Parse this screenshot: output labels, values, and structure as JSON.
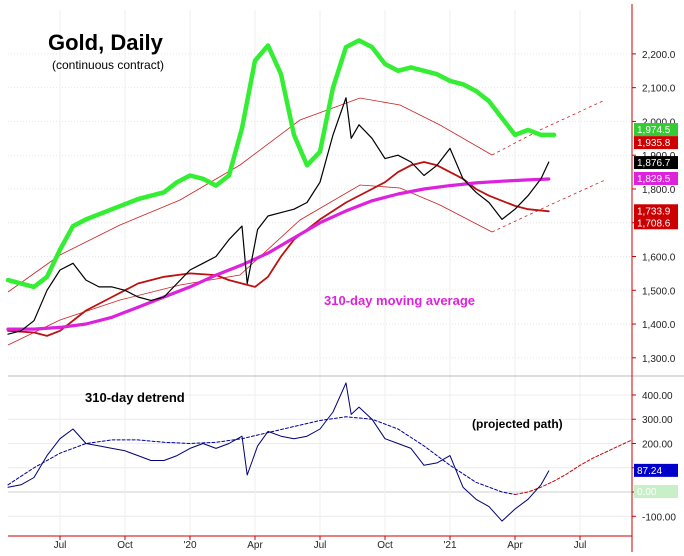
{
  "chart_data": [
    {
      "type": "line",
      "title": "Gold, Daily",
      "subtitle": "(continuous contract)",
      "annotation": "310-day moving average",
      "y_ticks": [
        1300,
        1400,
        1500,
        1600,
        1700,
        1800,
        1900,
        2000,
        2100,
        2200
      ],
      "y_tick_labels": [
        "1,300.0",
        "1,400.0",
        "1,500.0",
        "1,600.0",
        "1,700.0",
        "1,800.0",
        "1,900.0",
        "2,000.0",
        "2,100.0",
        "2,200.0"
      ],
      "ylim": [
        1255,
        2330
      ],
      "x_labels": [
        "Jul",
        "Oct",
        "'20",
        "Apr",
        "Jul",
        "Oct",
        "'21",
        "Apr",
        "Jul"
      ],
      "x_label_positions": [
        2019.5,
        2019.75,
        2020.0,
        2020.25,
        2020.5,
        2020.75,
        2021.0,
        2021.25,
        2021.5
      ],
      "xlim": [
        2019.3,
        2021.7
      ],
      "grid": true,
      "price_badges": [
        {
          "value": "1,974.5",
          "color": "#33cc33",
          "level": 1974.5
        },
        {
          "value": "1,935.8",
          "color": "#cc0000",
          "level": 1935.8
        },
        {
          "value": "1,876.7",
          "color": "#000000",
          "level": 1876.7
        },
        {
          "value": "1,829.5",
          "color": "#dd22dd",
          "level": 1829.5
        },
        {
          "value": "1,733.9",
          "color": "#cc0000",
          "level": 1733.9
        },
        {
          "value": "1,708.6",
          "color": "#cc0000",
          "level": 1708.6
        }
      ],
      "series": [
        {
          "color": "#000000",
          "x": [
            2019.3,
            2019.35,
            2019.4,
            2019.45,
            2019.5,
            2019.55,
            2019.6,
            2019.65,
            2019.7,
            2019.75,
            2019.8,
            2019.85,
            2019.9,
            2019.95,
            2020.0,
            2020.05,
            2020.1,
            2020.15,
            2020.2,
            2020.22,
            2020.24,
            2020.26,
            2020.3,
            2020.35,
            2020.4,
            2020.45,
            2020.5,
            2020.55,
            2020.6,
            2020.62,
            2020.65,
            2020.7,
            2020.75,
            2020.8,
            2020.85,
            2020.9,
            2020.95,
            2021.0,
            2021.05,
            2021.1,
            2021.15,
            2021.2,
            2021.25,
            2021.3,
            2021.35,
            2021.38
          ],
          "y": [
            1370,
            1380,
            1410,
            1500,
            1560,
            1580,
            1530,
            1510,
            1510,
            1500,
            1480,
            1470,
            1480,
            1520,
            1560,
            1580,
            1600,
            1650,
            1690,
            1520,
            1600,
            1680,
            1720,
            1730,
            1740,
            1760,
            1820,
            1960,
            2070,
            1950,
            1990,
            1950,
            1890,
            1900,
            1880,
            1840,
            1870,
            1920,
            1830,
            1790,
            1760,
            1710,
            1740,
            1780,
            1830,
            1880
          ]
        },
        {
          "color": "#33ee33",
          "x": [
            2019.3,
            2019.4,
            2019.45,
            2019.5,
            2019.55,
            2019.6,
            2019.7,
            2019.8,
            2019.9,
            2019.95,
            2020.0,
            2020.05,
            2020.1,
            2020.15,
            2020.2,
            2020.25,
            2020.3,
            2020.35,
            2020.4,
            2020.45,
            2020.5,
            2020.55,
            2020.6,
            2020.65,
            2020.7,
            2020.75,
            2020.8,
            2020.85,
            2020.9,
            2020.95,
            2021.0,
            2021.05,
            2021.1,
            2021.15,
            2021.2,
            2021.25,
            2021.3,
            2021.35,
            2021.4
          ],
          "y": [
            1530,
            1510,
            1540,
            1620,
            1690,
            1710,
            1740,
            1770,
            1790,
            1820,
            1840,
            1830,
            1810,
            1840,
            1980,
            2180,
            2225,
            2140,
            1960,
            1870,
            1910,
            2100,
            2220,
            2240,
            2220,
            2170,
            2150,
            2160,
            2150,
            2140,
            2120,
            2110,
            2090,
            2060,
            2010,
            1960,
            1974.5,
            1960,
            1960
          ]
        },
        {
          "color": "#dd22dd",
          "x": [
            2019.3,
            2019.4,
            2019.5,
            2019.6,
            2019.7,
            2019.8,
            2019.9,
            2020.0,
            2020.1,
            2020.2,
            2020.3,
            2020.4,
            2020.5,
            2020.6,
            2020.7,
            2020.8,
            2020.9,
            2021.0,
            2021.1,
            2021.2,
            2021.3,
            2021.38
          ],
          "y": [
            1385,
            1385,
            1390,
            1400,
            1420,
            1450,
            1480,
            1510,
            1545,
            1575,
            1610,
            1655,
            1700,
            1735,
            1765,
            1785,
            1800,
            1810,
            1818,
            1823,
            1827,
            1829.5
          ]
        },
        {
          "color": "#bb1111",
          "x": [
            2019.3,
            2019.4,
            2019.45,
            2019.5,
            2019.6,
            2019.7,
            2019.8,
            2019.9,
            2020.0,
            2020.1,
            2020.15,
            2020.2,
            2020.25,
            2020.3,
            2020.35,
            2020.4,
            2020.5,
            2020.6,
            2020.7,
            2020.75,
            2020.8,
            2020.85,
            2020.9,
            2020.95,
            2021.0,
            2021.05,
            2021.1,
            2021.15,
            2021.2,
            2021.25,
            2021.3,
            2021.38
          ],
          "y": [
            1380,
            1375,
            1365,
            1380,
            1440,
            1480,
            1520,
            1540,
            1550,
            1545,
            1530,
            1520,
            1510,
            1540,
            1600,
            1650,
            1710,
            1760,
            1800,
            1820,
            1850,
            1870,
            1880,
            1870,
            1850,
            1830,
            1800,
            1780,
            1765,
            1750,
            1740,
            1733.9
          ]
        }
      ]
    },
    {
      "type": "line",
      "title": "310-day detrend",
      "annotation": "(projected path)",
      "y_ticks": [
        -100,
        0,
        100,
        200,
        300,
        400
      ],
      "y_tick_labels": [
        "-100.00",
        "0.00",
        "100.00",
        "200.00",
        "300.00",
        "400.00"
      ],
      "ylim": [
        -140,
        470
      ],
      "x_labels": [
        "Jul",
        "Oct",
        "'20",
        "Apr",
        "Jul",
        "Oct",
        "'21",
        "Apr",
        "Jul"
      ],
      "grid": true,
      "value_badges": [
        {
          "value": "87.24",
          "color": "#0000cc",
          "level": 87.24
        },
        {
          "value": "0.00",
          "color": "#c8f0c8",
          "level": 0
        }
      ],
      "series": [
        {
          "color": "#000077",
          "x": [
            2019.3,
            2019.35,
            2019.4,
            2019.45,
            2019.5,
            2019.55,
            2019.6,
            2019.65,
            2019.7,
            2019.75,
            2019.8,
            2019.85,
            2019.9,
            2019.95,
            2020.0,
            2020.05,
            2020.1,
            2020.15,
            2020.2,
            2020.22,
            2020.24,
            2020.26,
            2020.3,
            2020.35,
            2020.4,
            2020.45,
            2020.5,
            2020.55,
            2020.6,
            2020.62,
            2020.65,
            2020.7,
            2020.75,
            2020.8,
            2020.85,
            2020.9,
            2020.95,
            2021.0,
            2021.05,
            2021.1,
            2021.15,
            2021.2,
            2021.25,
            2021.3,
            2021.35,
            2021.38
          ],
          "y": [
            20,
            30,
            60,
            150,
            220,
            260,
            200,
            190,
            180,
            170,
            150,
            130,
            130,
            150,
            180,
            200,
            180,
            200,
            230,
            70,
            130,
            190,
            250,
            230,
            220,
            230,
            260,
            330,
            450,
            320,
            350,
            300,
            220,
            200,
            180,
            110,
            120,
            150,
            20,
            -30,
            -60,
            -120,
            -70,
            -30,
            30,
            87.24
          ]
        },
        {
          "color": "#000099",
          "x": [
            2019.3,
            2019.4,
            2019.5,
            2019.6,
            2019.7,
            2019.8,
            2019.9,
            2020.0,
            2020.1,
            2020.2,
            2020.3,
            2020.4,
            2020.5,
            2020.6,
            2020.7,
            2020.8,
            2020.9,
            2021.0,
            2021.1,
            2021.2,
            2021.25
          ],
          "y": [
            30,
            100,
            160,
            200,
            215,
            215,
            205,
            200,
            205,
            220,
            245,
            270,
            295,
            310,
            300,
            260,
            190,
            110,
            40,
            0,
            -10
          ]
        },
        {
          "color": "#cc0000",
          "x": [
            2021.25,
            2021.3,
            2021.35,
            2021.4,
            2021.45,
            2021.5,
            2021.55,
            2021.6,
            2021.65,
            2021.7
          ],
          "y": [
            -10,
            0,
            20,
            45,
            75,
            110,
            140,
            165,
            190,
            215
          ]
        }
      ]
    }
  ]
}
